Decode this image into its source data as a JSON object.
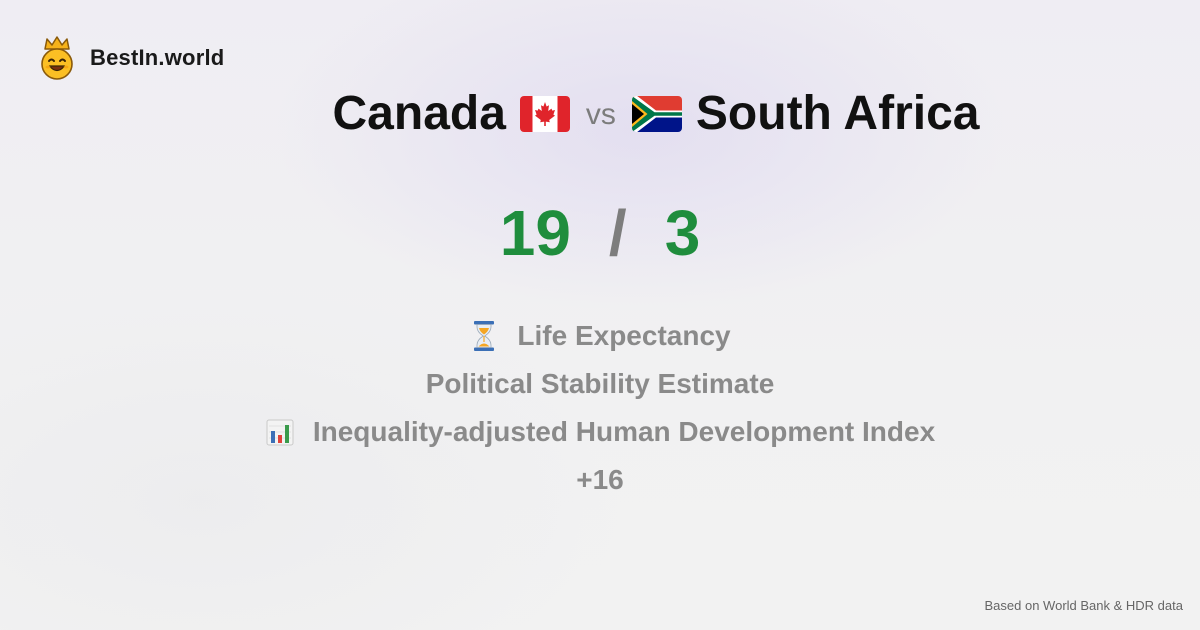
{
  "brand": {
    "name": "BestIn.world",
    "logo_icon": "crowned-smiley-icon"
  },
  "comparison": {
    "left_country": "Canada",
    "left_flag_icon": "canada-flag-icon",
    "vs_label": "vs",
    "right_country": "South Africa",
    "right_flag_icon": "south-africa-flag-icon"
  },
  "score": {
    "left": "19",
    "separator": "/",
    "right": "3",
    "color": "#1f8d3d"
  },
  "metrics": [
    {
      "label": "Life Expectancy",
      "icon": "hourglass-icon"
    },
    {
      "label": "Political Stability Estimate",
      "icon": ""
    },
    {
      "label": "Inequality-adjusted Human Development Index",
      "icon": "bar-chart-icon"
    }
  ],
  "more_count": "+16",
  "footer": {
    "source": "Based on World Bank & HDR data"
  }
}
